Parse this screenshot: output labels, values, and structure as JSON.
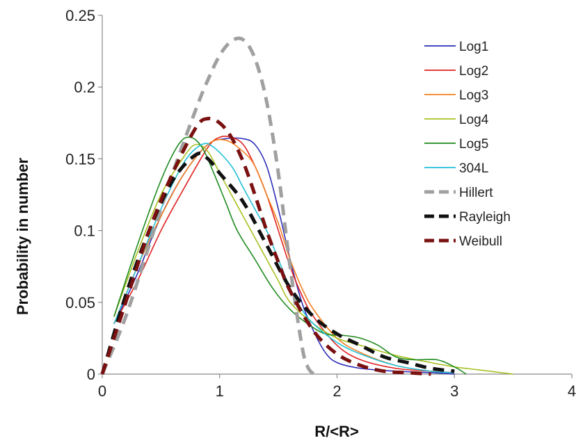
{
  "chart_data": {
    "type": "line",
    "title": "",
    "xlabel": "R/<R>",
    "ylabel": "Probability in number",
    "xlim": [
      0,
      4
    ],
    "ylim": [
      0,
      0.25
    ],
    "x_ticks": [
      0,
      1,
      2,
      3,
      4
    ],
    "y_ticks": [
      0,
      0.05,
      0.1,
      0.15,
      0.2,
      0.25
    ],
    "x_tick_labels": [
      "0",
      "1",
      "2",
      "3",
      "4"
    ],
    "y_tick_labels": [
      "0",
      "0.05",
      "0.1",
      "0.15",
      "0.2",
      "0.25"
    ],
    "grid": false,
    "legend_position": "right",
    "series": [
      {
        "name": "Log1",
        "color": "#2b2bb8",
        "dashed": false,
        "x": [
          0.1,
          0.3,
          0.5,
          0.7,
          0.9,
          1.05,
          1.2,
          1.3,
          1.4,
          1.5,
          1.6,
          1.7,
          1.8,
          1.9,
          2.0,
          2.2,
          2.5,
          2.8,
          3.0
        ],
        "y": [
          0.035,
          0.07,
          0.11,
          0.14,
          0.16,
          0.164,
          0.164,
          0.16,
          0.145,
          0.115,
          0.08,
          0.05,
          0.03,
          0.015,
          0.008,
          0.004,
          0.002,
          0.001,
          0.0
        ]
      },
      {
        "name": "Log2",
        "color": "#e02020",
        "dashed": false,
        "x": [
          0.1,
          0.3,
          0.5,
          0.7,
          0.9,
          1.0,
          1.1,
          1.2,
          1.3,
          1.4,
          1.5,
          1.6,
          1.7,
          1.8,
          2.0,
          2.2,
          2.5,
          2.8,
          3.0
        ],
        "y": [
          0.035,
          0.065,
          0.1,
          0.13,
          0.158,
          0.165,
          0.165,
          0.16,
          0.145,
          0.125,
          0.1,
          0.075,
          0.055,
          0.04,
          0.02,
          0.01,
          0.004,
          0.002,
          0.001
        ]
      },
      {
        "name": "Log3",
        "color": "#f28020",
        "dashed": false,
        "x": [
          0.1,
          0.3,
          0.5,
          0.7,
          0.9,
          1.05,
          1.2,
          1.3,
          1.4,
          1.5,
          1.6,
          1.7,
          1.8,
          2.0,
          2.2,
          2.5,
          2.8,
          3.0
        ],
        "y": [
          0.035,
          0.075,
          0.11,
          0.14,
          0.16,
          0.163,
          0.155,
          0.145,
          0.125,
          0.105,
          0.08,
          0.06,
          0.045,
          0.025,
          0.015,
          0.006,
          0.002,
          0.001
        ]
      },
      {
        "name": "Log4",
        "color": "#a8c020",
        "dashed": false,
        "x": [
          0.1,
          0.3,
          0.5,
          0.7,
          0.8,
          0.9,
          1.0,
          1.1,
          1.2,
          1.3,
          1.4,
          1.5,
          1.6,
          1.8,
          2.0,
          2.2,
          2.5,
          2.8,
          3.0,
          3.2,
          3.5
        ],
        "y": [
          0.04,
          0.085,
          0.125,
          0.152,
          0.16,
          0.155,
          0.14,
          0.125,
          0.11,
          0.095,
          0.08,
          0.065,
          0.05,
          0.035,
          0.025,
          0.02,
          0.013,
          0.008,
          0.005,
          0.003,
          0.0
        ]
      },
      {
        "name": "Log5",
        "color": "#1e8a1e",
        "dashed": false,
        "x": [
          0.1,
          0.3,
          0.5,
          0.65,
          0.75,
          0.85,
          0.95,
          1.05,
          1.15,
          1.3,
          1.45,
          1.6,
          1.75,
          1.9,
          2.05,
          2.2,
          2.35,
          2.5,
          2.65,
          2.85,
          3.0,
          3.1
        ],
        "y": [
          0.04,
          0.09,
          0.135,
          0.16,
          0.165,
          0.158,
          0.14,
          0.12,
          0.1,
          0.08,
          0.06,
          0.045,
          0.035,
          0.028,
          0.027,
          0.025,
          0.02,
          0.012,
          0.01,
          0.01,
          0.005,
          0.0
        ]
      },
      {
        "name": "304L",
        "color": "#20c0d8",
        "dashed": false,
        "x": [
          0.1,
          0.3,
          0.5,
          0.7,
          0.85,
          0.95,
          1.1,
          1.2,
          1.3,
          1.4,
          1.5,
          1.6,
          1.7,
          1.8,
          2.0,
          2.2,
          2.5,
          2.8,
          3.0
        ],
        "y": [
          0.035,
          0.075,
          0.115,
          0.148,
          0.16,
          0.158,
          0.145,
          0.13,
          0.115,
          0.1,
          0.08,
          0.06,
          0.045,
          0.035,
          0.022,
          0.014,
          0.006,
          0.002,
          0.001
        ]
      },
      {
        "name": "Hillert",
        "color": "#a0a0a0",
        "dashed": true,
        "x": [
          0.0,
          0.2,
          0.4,
          0.6,
          0.8,
          0.9,
          1.0,
          1.1,
          1.2,
          1.3,
          1.4,
          1.5,
          1.6,
          1.7,
          1.75,
          1.8
        ],
        "y": [
          0.0,
          0.04,
          0.09,
          0.14,
          0.185,
          0.205,
          0.222,
          0.232,
          0.233,
          0.22,
          0.19,
          0.14,
          0.075,
          0.02,
          0.005,
          0.0
        ]
      },
      {
        "name": "Rayleigh",
        "color": "#111111",
        "dashed": true,
        "x": [
          0.0,
          0.2,
          0.4,
          0.6,
          0.8,
          0.9,
          1.0,
          1.2,
          1.4,
          1.6,
          1.8,
          2.0,
          2.2,
          2.4,
          2.6,
          2.8,
          3.0
        ],
        "y": [
          0.0,
          0.055,
          0.1,
          0.135,
          0.153,
          0.15,
          0.14,
          0.12,
          0.09,
          0.06,
          0.04,
          0.028,
          0.02,
          0.012,
          0.008,
          0.004,
          0.002
        ]
      },
      {
        "name": "Weibull",
        "color": "#7a1010",
        "dashed": true,
        "x": [
          0.0,
          0.2,
          0.4,
          0.6,
          0.8,
          0.9,
          1.0,
          1.1,
          1.2,
          1.3,
          1.4,
          1.5,
          1.6,
          1.8,
          2.0,
          2.2,
          2.4,
          2.6,
          2.8
        ],
        "y": [
          0.0,
          0.05,
          0.1,
          0.14,
          0.172,
          0.178,
          0.175,
          0.165,
          0.148,
          0.125,
          0.1,
          0.078,
          0.058,
          0.03,
          0.014,
          0.006,
          0.002,
          0.001,
          0.0
        ]
      }
    ]
  }
}
